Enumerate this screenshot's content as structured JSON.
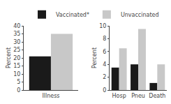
{
  "chart_data": [
    {
      "type": "bar",
      "categories": [
        "Illness"
      ],
      "series": [
        {
          "name": "Vaccinated*",
          "color": "#1a1a1a",
          "values": [
            21
          ]
        },
        {
          "name": "Unvaccinated",
          "color": "#c8c8c8",
          "values": [
            35
          ]
        }
      ],
      "ylabel": "Percent",
      "ylim": [
        0,
        40
      ],
      "yticks": [
        0,
        5,
        10,
        15,
        20,
        25,
        30,
        35,
        40
      ],
      "grid": false,
      "legend": "top"
    },
    {
      "type": "bar",
      "categories": [
        "Hosp",
        "Pneu",
        "Death"
      ],
      "series": [
        {
          "name": "Vaccinated*",
          "color": "#1a1a1a",
          "values": [
            3.5,
            4.0,
            1.1
          ]
        },
        {
          "name": "Unvaccinated",
          "color": "#c8c8c8",
          "values": [
            6.5,
            9.5,
            4.0
          ]
        }
      ],
      "ylabel": "Percent",
      "ylim": [
        0,
        10
      ],
      "yticks": [
        0,
        2,
        4,
        6,
        8,
        10
      ],
      "grid": false,
      "legend": "top"
    }
  ]
}
